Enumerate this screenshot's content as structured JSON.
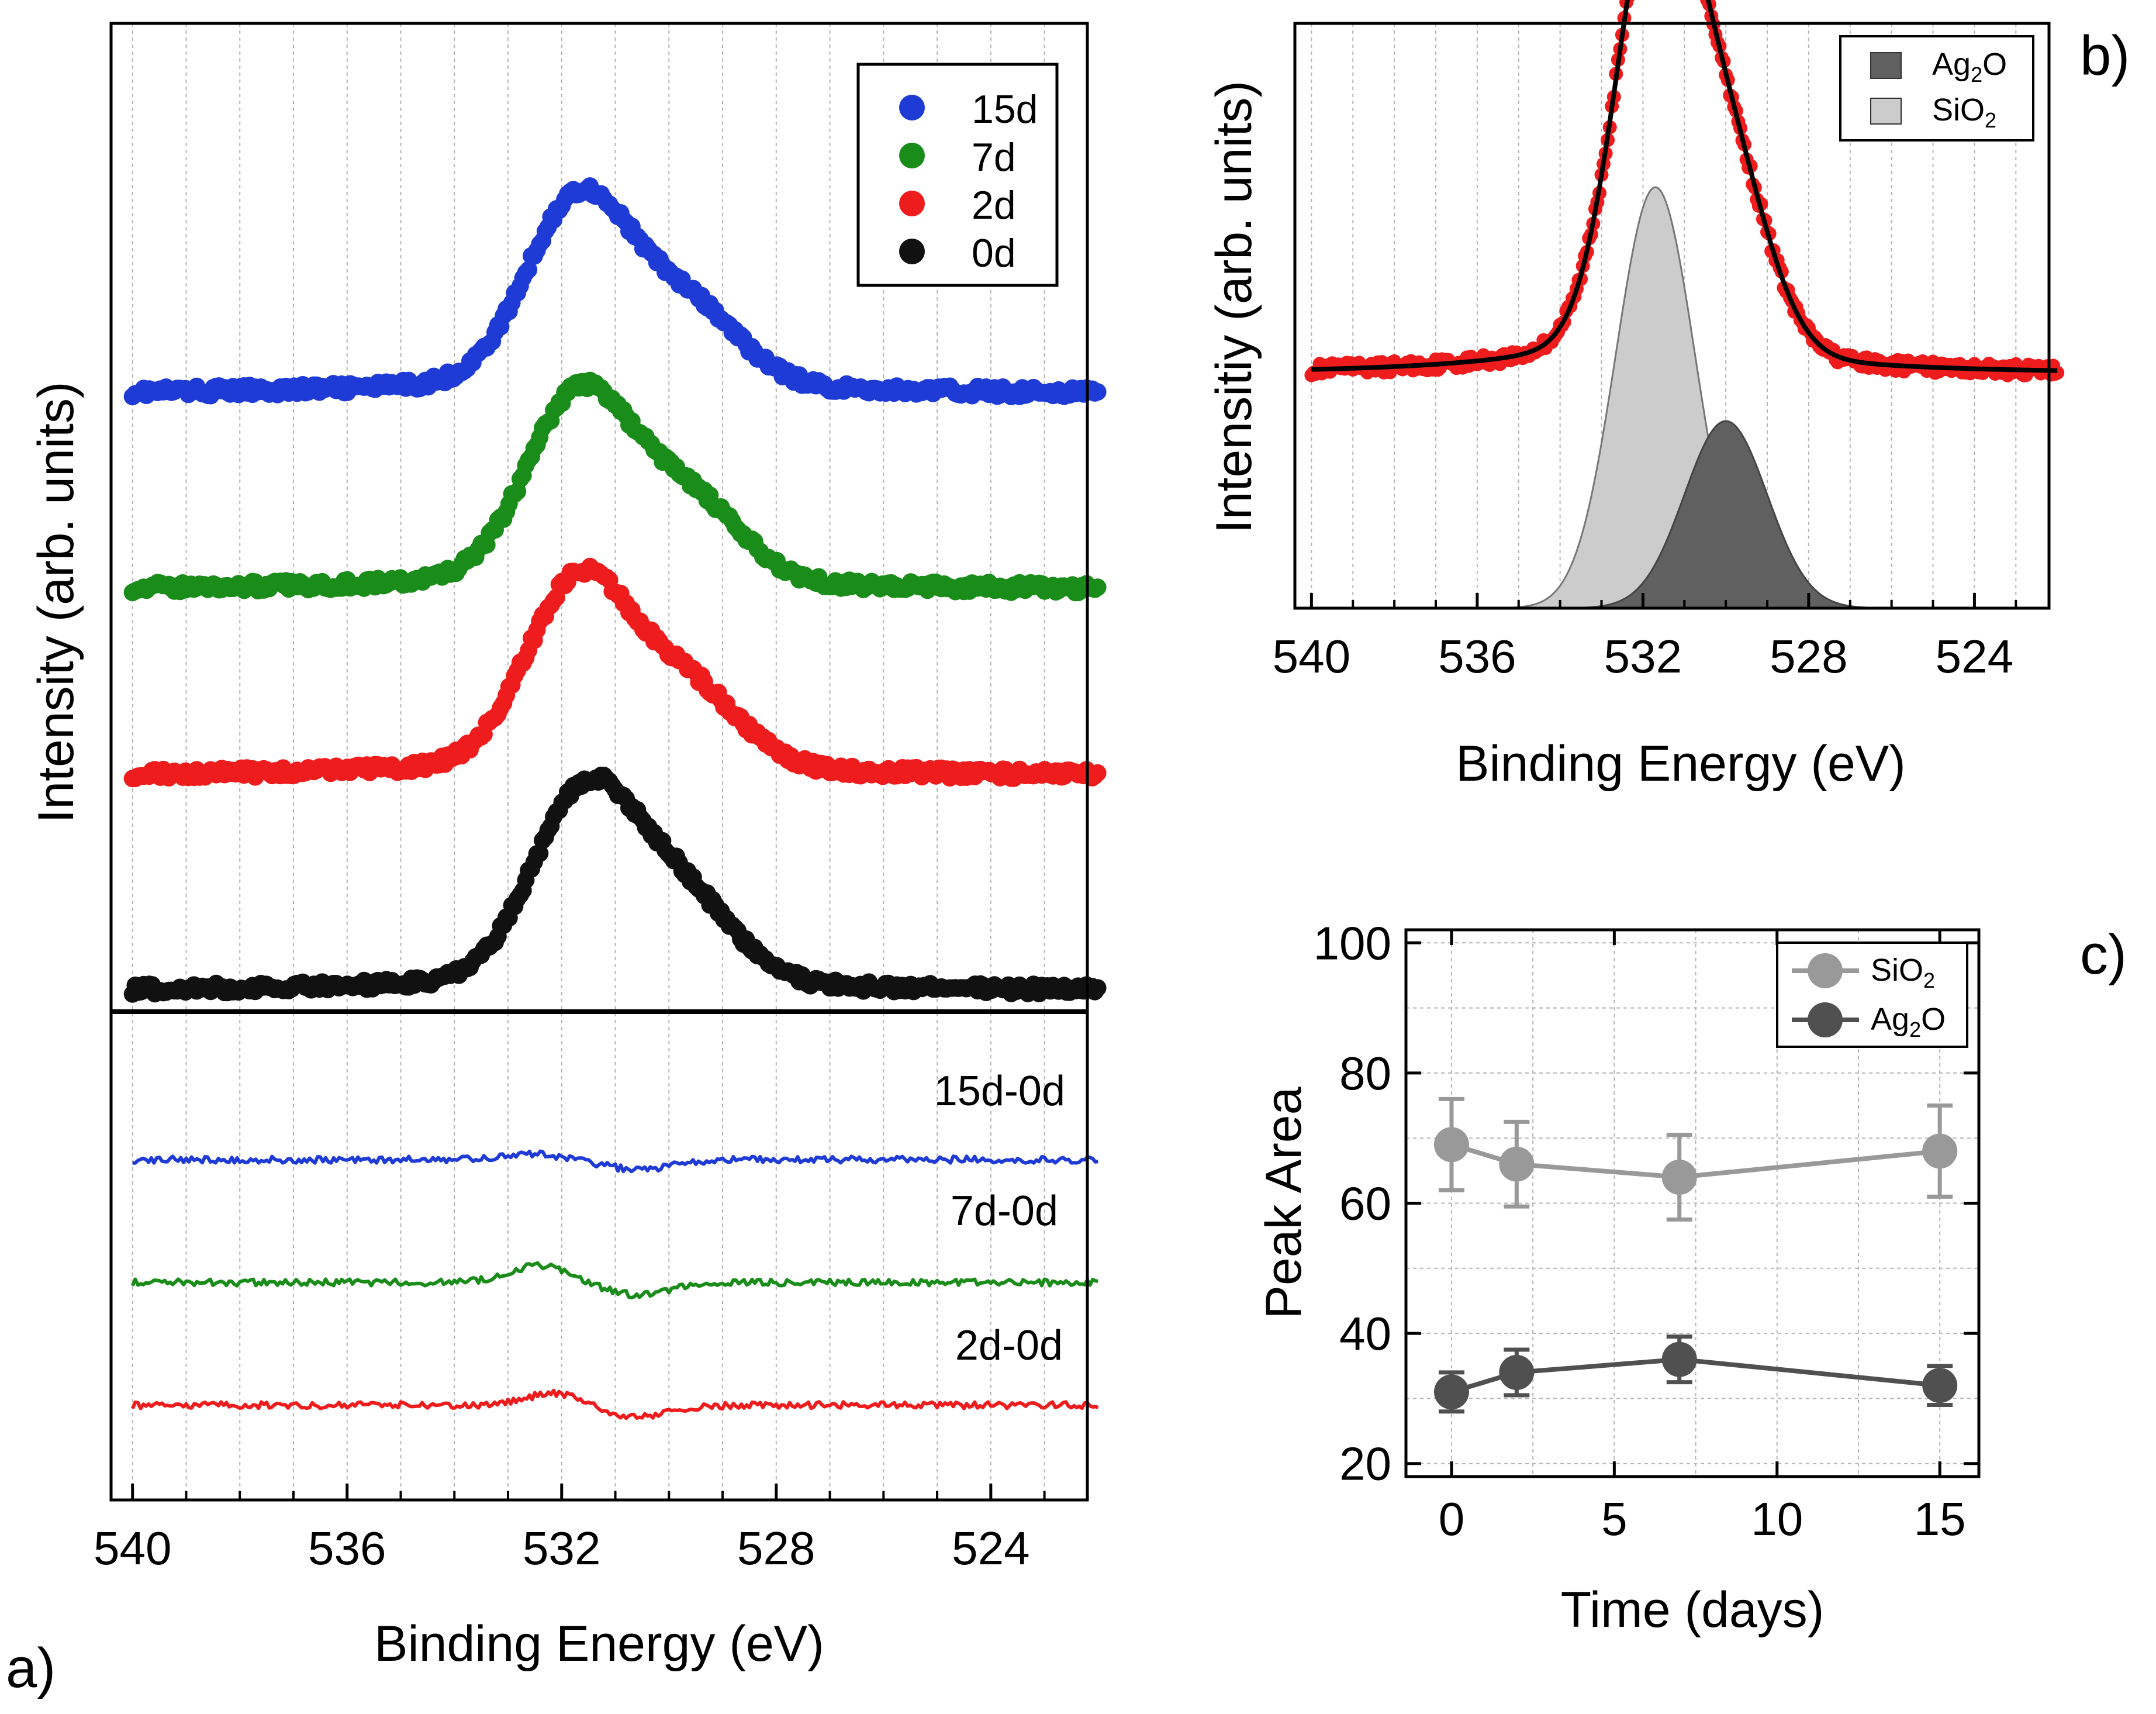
{
  "figure": {
    "panel_labels": {
      "a": "a)",
      "b": "b)",
      "c": "c)"
    },
    "colors": {
      "d15": "#1f3bd6",
      "d7": "#1a8c1a",
      "d2": "#ee1c1c",
      "d0": "#111111",
      "fit": "#000000",
      "ag2o_fill": "#606060",
      "sio2_fill": "#cccccc",
      "sio2_line": "#999999",
      "ag2o_line": "#505050",
      "grid": "#b5b5b5"
    }
  },
  "chart_data": [
    {
      "id": "a",
      "type": "scatter",
      "xlabel": "Binding Energy (eV)",
      "ylabel": "Intensity  (arb. units)",
      "xlim": [
        540.4,
        522.2
      ],
      "xticks": [
        540,
        536,
        532,
        528,
        524
      ],
      "x_tick_labels": [
        "540",
        "536",
        "532",
        "528",
        "524"
      ],
      "grid_x": true,
      "legend_position": "top-right",
      "legend": [
        "15d",
        "7d",
        "2d",
        "0d"
      ],
      "series": [
        {
          "name": "15d",
          "color_key": "d15",
          "offset": 3.05,
          "amplitude": 1.0,
          "sio2_center": 531.7,
          "sio2_width": 0.95,
          "sio2_height": 0.78,
          "ag2o_center": 529.7,
          "ag2o_width": 1.0,
          "ag2o_height": 0.34,
          "tail_amp": 0.07,
          "baseline_at_540": 0.0,
          "baseline_at_522": 0.0
        },
        {
          "name": "7d",
          "color_key": "d7",
          "offset": 2.05,
          "amplitude": 1.0,
          "sio2_center": 531.7,
          "sio2_width": 0.95,
          "sio2_height": 0.78,
          "ag2o_center": 529.7,
          "ag2o_width": 1.0,
          "ag2o_height": 0.36,
          "tail_amp": 0.07,
          "baseline_at_540": 0.0,
          "baseline_at_522": 0.0
        },
        {
          "name": "2d",
          "color_key": "d2",
          "offset": 1.1,
          "amplitude": 1.0,
          "sio2_center": 531.7,
          "sio2_width": 0.95,
          "sio2_height": 0.78,
          "ag2o_center": 529.7,
          "ag2o_width": 1.0,
          "ag2o_height": 0.35,
          "tail_amp": 0.07,
          "baseline_at_540": 0.0,
          "baseline_at_522": 0.0
        },
        {
          "name": "0d",
          "color_key": "d0",
          "offset": 0.0,
          "amplitude": 1.03,
          "sio2_center": 531.6,
          "sio2_width": 0.95,
          "sio2_height": 0.76,
          "ag2o_center": 529.8,
          "ag2o_width": 1.0,
          "ag2o_height": 0.36,
          "tail_amp": 0.07,
          "baseline_at_540": 0.0,
          "baseline_at_522": 0.0
        }
      ],
      "difference_curves": [
        {
          "name": "15d-0d",
          "label": "15d-0d",
          "color_key": "d15",
          "offset": 2.2,
          "pos_center": 532.5,
          "pos_amp": 0.045,
          "neg_center": 530.6,
          "neg_amp": -0.08
        },
        {
          "name": "7d-0d",
          "label": "7d-0d",
          "color_key": "d7",
          "offset": 1.2,
          "pos_center": 532.4,
          "pos_amp": 0.14,
          "neg_center": 530.6,
          "neg_amp": -0.1
        },
        {
          "name": "2d-0d",
          "label": "2d-0d",
          "color_key": "d2",
          "offset": 0.2,
          "pos_center": 532.1,
          "pos_amp": 0.1,
          "neg_center": 530.7,
          "neg_amp": -0.1
        }
      ]
    },
    {
      "id": "b",
      "type": "area",
      "xlabel": "Binding Energy (eV)",
      "ylabel": "Intensitiy  (arb. units)",
      "xlim": [
        540.4,
        522.2
      ],
      "xticks": [
        540,
        536,
        532,
        528,
        524
      ],
      "x_tick_labels": [
        "540",
        "536",
        "532",
        "528",
        "524"
      ],
      "grid_x": true,
      "legend_position": "top-right",
      "legend": [
        {
          "name": "Ag2O",
          "base": "Ag",
          "sub": "2",
          "tail": "O",
          "color_key": "ag2o_fill"
        },
        {
          "name": "SiO2",
          "base": "SiO",
          "sub": "2",
          "tail": "",
          "color_key": "sio2_fill"
        }
      ],
      "components": [
        {
          "name": "SiO2",
          "center": 531.7,
          "width": 0.95,
          "height": 0.9
        },
        {
          "name": "Ag2O",
          "center": 530.0,
          "width": 1.0,
          "height": 0.4
        }
      ],
      "data_series": {
        "name": "data",
        "color_key": "d2",
        "baseline": 0.5,
        "tail_amp": 0.08
      },
      "fit_series": {
        "name": "fit",
        "color_key": "fit"
      }
    },
    {
      "id": "c",
      "type": "line",
      "xlabel": "Time (days)",
      "ylabel": "Peak Area",
      "xlim": [
        -1.4,
        16.2
      ],
      "ylim": [
        18,
        102
      ],
      "xticks": [
        0,
        5,
        10,
        15
      ],
      "x_tick_labels": [
        "0",
        "5",
        "10",
        "15"
      ],
      "yticks": [
        20,
        40,
        60,
        80,
        100
      ],
      "y_tick_labels": [
        "20",
        "40",
        "60",
        "80",
        "100"
      ],
      "grid": true,
      "legend_position": "top-right",
      "legend": [
        {
          "name": "SiO2",
          "base": "SiO",
          "sub": "2",
          "tail": "",
          "color_key": "sio2_line"
        },
        {
          "name": "Ag2O",
          "base": "Ag",
          "sub": "2",
          "tail": "O",
          "color_key": "ag2o_line"
        }
      ],
      "x": [
        0,
        2,
        7,
        15
      ],
      "series": [
        {
          "name": "SiO2",
          "color_key": "sio2_line",
          "values": [
            69,
            66,
            64,
            68
          ],
          "errors": [
            7,
            6.5,
            6.5,
            7
          ]
        },
        {
          "name": "Ag2O",
          "color_key": "ag2o_line",
          "values": [
            31,
            34,
            36,
            32
          ],
          "errors": [
            3,
            3.5,
            3.5,
            3
          ]
        }
      ]
    }
  ]
}
